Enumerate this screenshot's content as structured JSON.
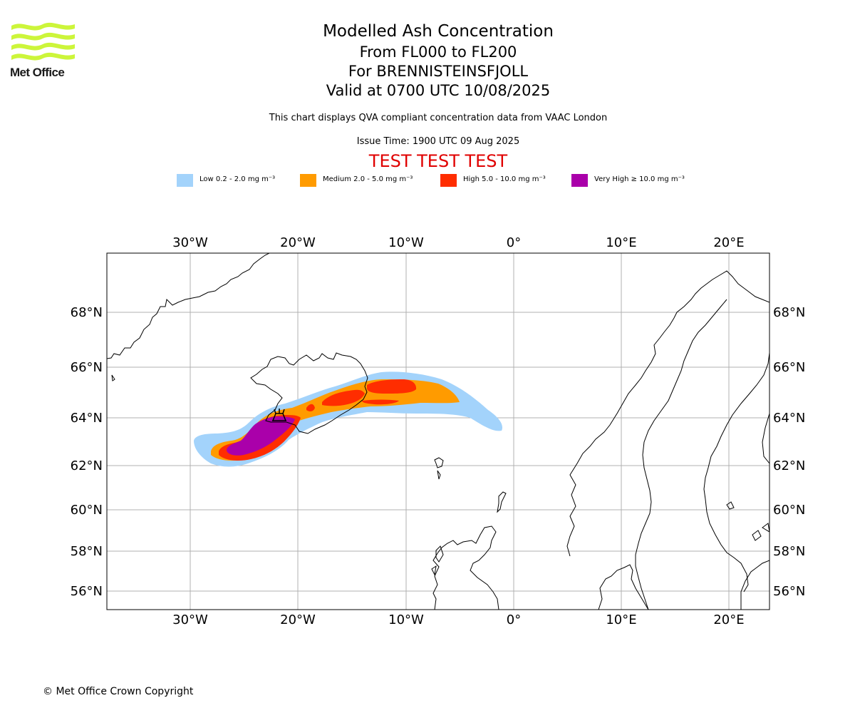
{
  "logo": {
    "text": "Met Office",
    "wave_color": "#ccf53a"
  },
  "header": {
    "title": "Modelled Ash Concentration",
    "levels": "From FL000 to FL200",
    "volcano": "For BRENNISTEINSFJOLL",
    "valid": "Valid at 0700 UTC 10/08/2025"
  },
  "note": "This chart displays QVA compliant concentration data from VAAC London",
  "issue_time": "Issue Time: 1900 UTC 09 Aug 2025",
  "test_banner": "TEST TEST TEST",
  "legend": [
    {
      "label": "Low 0.2 - 2.0 mg m⁻³",
      "color": "#a3d3fb"
    },
    {
      "label": "Medium 2.0 - 5.0 mg m⁻³",
      "color": "#ff9b00"
    },
    {
      "label": "High 5.0 - 10.0 mg m⁻³",
      "color": "#ff2d00"
    },
    {
      "label": "Very High ≥ 10.0 mg m⁻³",
      "color": "#aa00aa"
    }
  ],
  "axes": {
    "longitude_labels": [
      "30°W",
      "20°W",
      "10°W",
      "0°",
      "10°E",
      "20°E"
    ],
    "latitude_labels": [
      "68°N",
      "66°N",
      "64°N",
      "62°N",
      "60°N",
      "58°N",
      "56°N"
    ]
  },
  "footer": "© Met Office Crown Copyright"
}
